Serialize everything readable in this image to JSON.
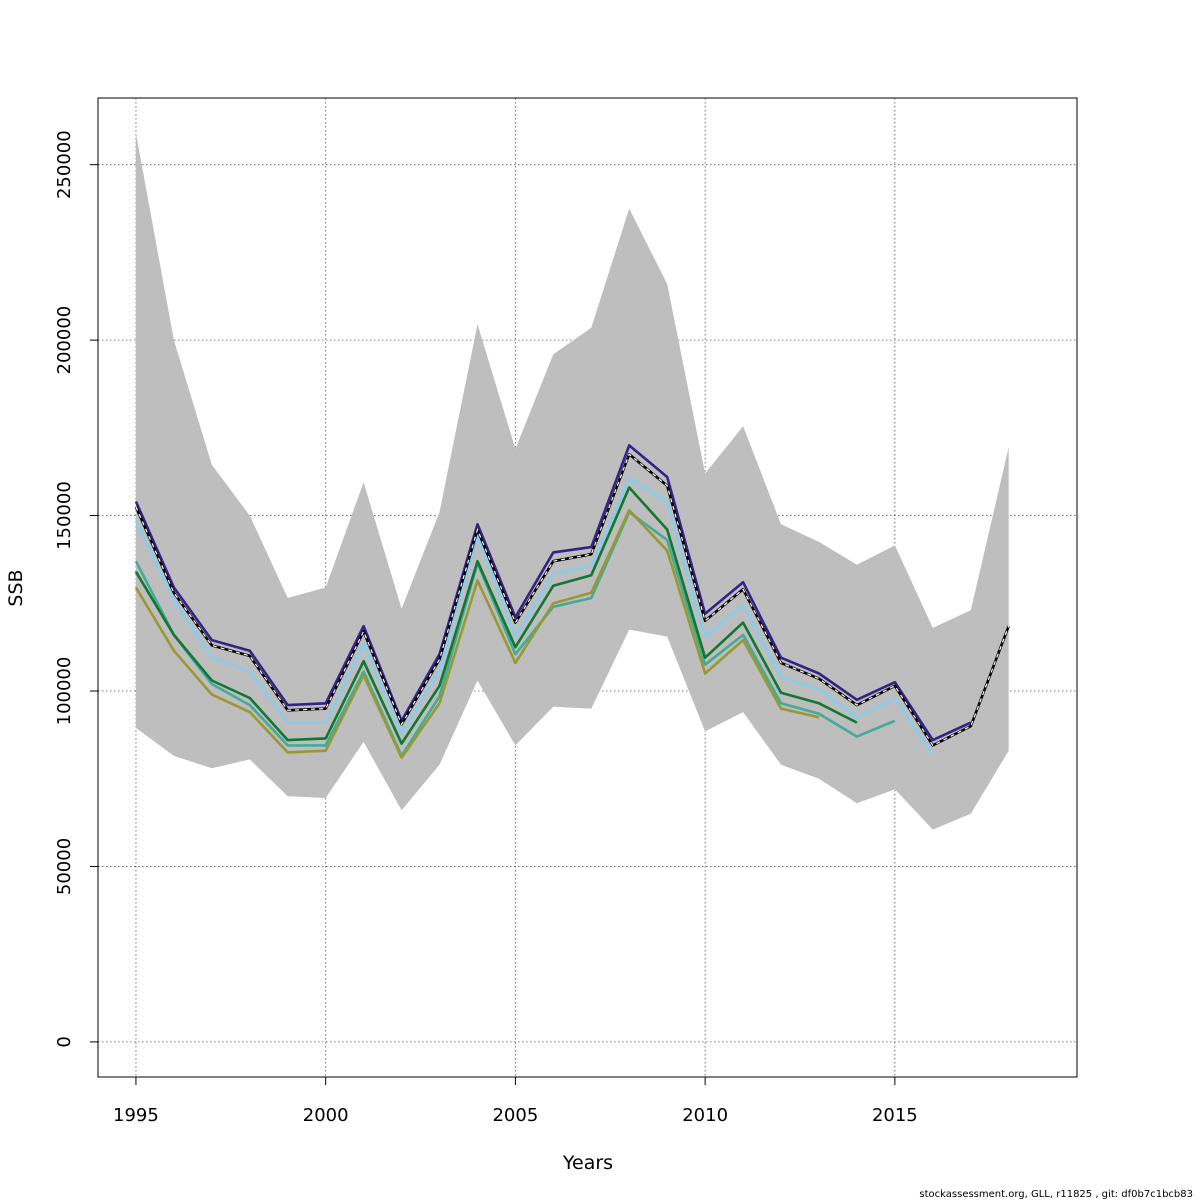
{
  "chart_data": {
    "type": "line",
    "title": "",
    "xlabel": "Years",
    "ylabel": "SSB",
    "xlim": [
      1994,
      2019.8
    ],
    "ylim": [
      -10000,
      269000
    ],
    "xticks": [
      1995,
      2000,
      2005,
      2010,
      2015
    ],
    "yticks": [
      0,
      50000,
      100000,
      150000,
      200000,
      250000
    ],
    "xtick_labels": [
      "1995",
      "2000",
      "2005",
      "2010",
      "2015"
    ],
    "ytick_labels": [
      "0",
      "50000",
      "100000",
      "150000",
      "200000",
      "250000"
    ],
    "grid": true,
    "band": {
      "x": [
        1995,
        1996,
        1997,
        1998,
        1999,
        2000,
        2001,
        2002,
        2003,
        2004,
        2005,
        2006,
        2007,
        2008,
        2009,
        2010,
        2011,
        2012,
        2013,
        2014,
        2015,
        2016,
        2017,
        2018
      ],
      "upper": [
        259000,
        200000,
        164500,
        150000,
        126500,
        129500,
        159500,
        123500,
        151000,
        204500,
        169000,
        196000,
        203500,
        237500,
        216000,
        162000,
        175500,
        147500,
        142500,
        136000,
        141500,
        118000,
        123000,
        169500
      ],
      "lower": [
        89500,
        81500,
        78000,
        80500,
        70000,
        69500,
        85500,
        66000,
        79000,
        103000,
        84500,
        95500,
        95000,
        117500,
        115500,
        88500,
        94000,
        79000,
        75000,
        68000,
        72000,
        60500,
        65000,
        83000
      ],
      "color": "#bebebe"
    },
    "series": [
      {
        "color": "#332288",
        "dashed": false,
        "x": [
          1995,
          1996,
          1997,
          1998,
          1999,
          2000,
          2001,
          2002,
          2003,
          2004,
          2005,
          2006,
          2007,
          2008,
          2009,
          2010,
          2011,
          2012,
          2013,
          2014,
          2015,
          2016,
          2017
        ],
        "values": [
          154000,
          129500,
          114500,
          111500,
          96000,
          96500,
          118500,
          91500,
          110500,
          147500,
          121000,
          139500,
          141000,
          170000,
          161000,
          122000,
          131000,
          109500,
          105000,
          97500,
          102500,
          86000,
          91000
        ]
      },
      {
        "color": "#88ccee",
        "dashed": false,
        "x": [
          1995,
          1996,
          1997,
          1998,
          1999,
          2000,
          2001,
          2002,
          2003,
          2004,
          2005,
          2006,
          2007,
          2008,
          2009,
          2010,
          2011,
          2012,
          2013,
          2014,
          2015,
          2016
        ],
        "values": [
          148500,
          126000,
          109500,
          105500,
          91000,
          91000,
          113500,
          88000,
          106000,
          144000,
          115500,
          133500,
          135500,
          160500,
          154000,
          115500,
          124500,
          104000,
          100500,
          92500,
          98000,
          82000
        ]
      },
      {
        "color": "#44aa99",
        "dashed": false,
        "x": [
          1995,
          1996,
          1997,
          1998,
          1999,
          2000,
          2001,
          2002,
          2003,
          2004,
          2005,
          2006,
          2007,
          2008,
          2009,
          2010,
          2011,
          2012,
          2013,
          2014,
          2015
        ],
        "values": [
          137000,
          116000,
          102000,
          96000,
          84500,
          84500,
          105500,
          81500,
          98500,
          136500,
          110500,
          124000,
          126500,
          151000,
          143000,
          107500,
          116000,
          96500,
          93500,
          87000,
          91500
        ]
      },
      {
        "color": "#117733",
        "dashed": false,
        "x": [
          1995,
          1996,
          1997,
          1998,
          1999,
          2000,
          2001,
          2002,
          2003,
          2004,
          2005,
          2006,
          2007,
          2008,
          2009,
          2010,
          2011,
          2012,
          2013,
          2014
        ],
        "values": [
          134000,
          116000,
          103000,
          98000,
          86000,
          86500,
          108500,
          85000,
          101500,
          137000,
          112500,
          130000,
          133000,
          158000,
          146000,
          109500,
          119500,
          99500,
          96500,
          91000
        ]
      },
      {
        "color": "#999933",
        "dashed": false,
        "x": [
          1995,
          1996,
          1997,
          1998,
          1999,
          2000,
          2001,
          2002,
          2003,
          2004,
          2005,
          2006,
          2007,
          2008,
          2009,
          2010,
          2011,
          2012,
          2013
        ],
        "values": [
          129500,
          111500,
          99000,
          94000,
          82500,
          83000,
          104500,
          81000,
          96500,
          131500,
          108000,
          125000,
          128000,
          151500,
          140000,
          105000,
          114500,
          95000,
          92500
        ]
      },
      {
        "color": "#000000",
        "dashed": false,
        "x": [
          1995,
          1996,
          1997,
          1998,
          1999,
          2000,
          2001,
          2002,
          2003,
          2004,
          2005,
          2006,
          2007,
          2008,
          2009,
          2010,
          2011,
          2012,
          2013,
          2014,
          2015,
          2016,
          2017,
          2018
        ],
        "values": [
          152500,
          128000,
          113000,
          110000,
          94500,
          95000,
          117000,
          90500,
          109000,
          146000,
          119500,
          137000,
          139000,
          167500,
          158500,
          120000,
          129000,
          108000,
          103500,
          96000,
          101500,
          84500,
          90000,
          118500
        ]
      }
    ],
    "footer": "stockassessment.org, GLL, r11825 , git: df0b7c1bcb83"
  }
}
